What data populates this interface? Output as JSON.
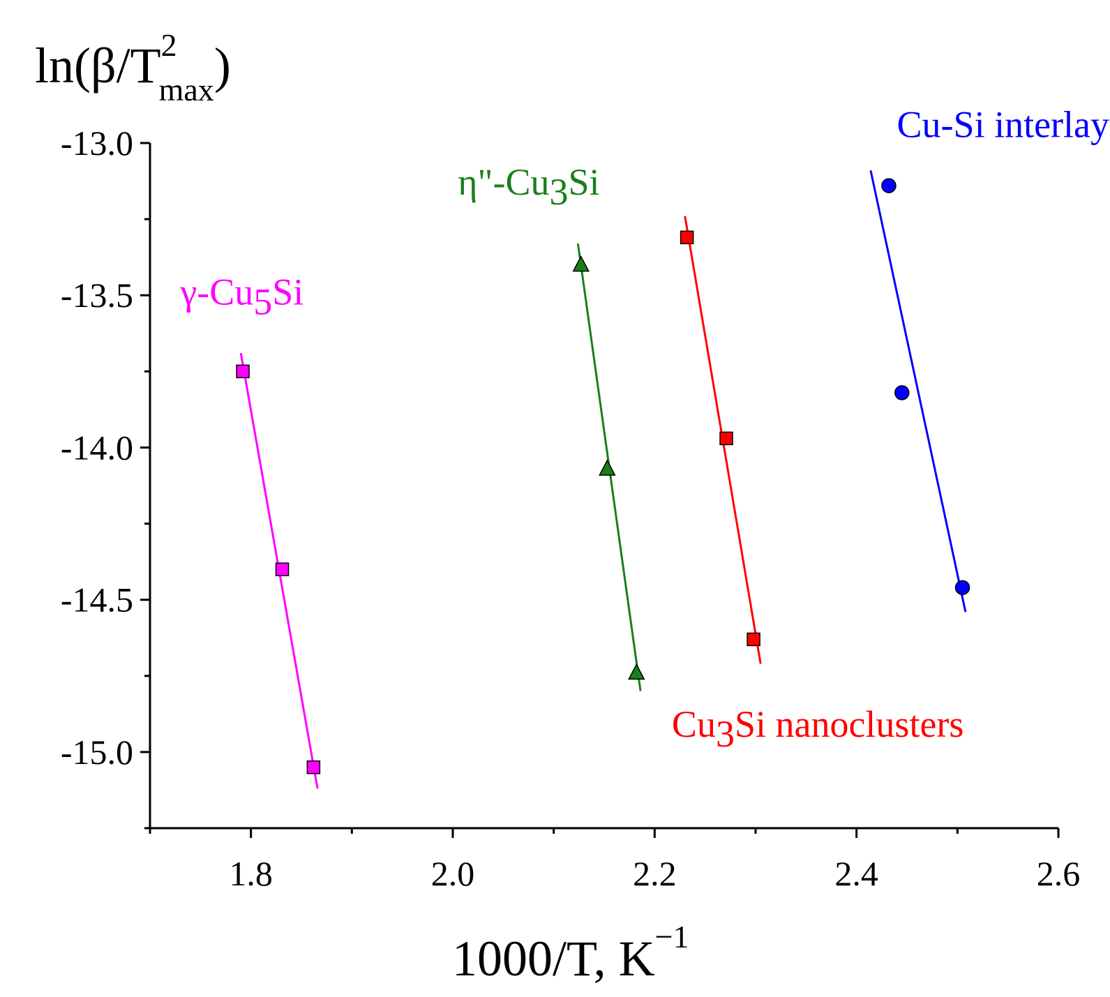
{
  "chart_data": {
    "type": "scatter",
    "title": "",
    "xlabel": {
      "main": "1000/T, K",
      "sup": "−1"
    },
    "ylabel": {
      "prefix": "ln(β/T",
      "sup": "2",
      "sub": "max",
      "suffix": ")"
    },
    "xlim": [
      1.7,
      2.6
    ],
    "ylim": [
      -15.25,
      -13.0
    ],
    "xticks": [
      1.8,
      2.0,
      2.2,
      2.4,
      2.6
    ],
    "xtick_labels": [
      "1.8",
      "2.0",
      "2.2",
      "2.4",
      "2.6"
    ],
    "yticks": [
      -13.0,
      -13.5,
      -14.0,
      -14.5,
      -15.0
    ],
    "ytick_labels": [
      "-13.0",
      "-13.5",
      "-14.0",
      "-14.5",
      "-15.0"
    ],
    "x_minor_step": 0.1,
    "y_minor_step": 0.25,
    "grid": false,
    "series": [
      {
        "key": "gamma",
        "label": {
          "a": "γ-Cu",
          "sub": "5",
          "b": "Si"
        },
        "color": "#ff00ff",
        "marker": "square",
        "x": [
          1.792,
          1.831,
          1.862
        ],
        "y": [
          -13.75,
          -14.4,
          -15.05
        ],
        "fit": {
          "x": [
            1.79,
            1.866
          ],
          "y": [
            -13.69,
            -15.12
          ]
        },
        "label_anchor": {
          "x": 1.73,
          "y": -13.53
        }
      },
      {
        "key": "eta",
        "label": {
          "a": "η\"-Cu",
          "sub": "3",
          "b": "Si"
        },
        "color": "#1a7f1a",
        "marker": "triangle",
        "x": [
          2.127,
          2.153,
          2.182
        ],
        "y": [
          -13.4,
          -14.07,
          -14.74
        ],
        "fit": {
          "x": [
            2.124,
            2.186
          ],
          "y": [
            -13.33,
            -14.8
          ]
        },
        "label_anchor": {
          "x": 2.005,
          "y": -13.17
        }
      },
      {
        "key": "cu3si",
        "label": {
          "a": "Cu",
          "sub": "3",
          "b": "Si nanoclusters"
        },
        "color": "#ff0000",
        "marker": "square",
        "x": [
          2.232,
          2.271,
          2.298
        ],
        "y": [
          -13.31,
          -13.97,
          -14.63
        ],
        "fit": {
          "x": [
            2.23,
            2.305
          ],
          "y": [
            -13.24,
            -14.71
          ]
        },
        "label_anchor": {
          "x": 2.217,
          "y": -14.95
        }
      },
      {
        "key": "interlayer",
        "label": {
          "a": "Cu-Si interlayer",
          "sub": "",
          "b": ""
        },
        "color": "#0000ff",
        "marker": "circle",
        "x": [
          2.432,
          2.445,
          2.505
        ],
        "y": [
          -13.14,
          -13.82,
          -14.46
        ],
        "fit": {
          "x": [
            2.414,
            2.508
          ],
          "y": [
            -13.09,
            -14.54
          ]
        },
        "label_anchor": {
          "x": 2.44,
          "y": -12.98
        }
      }
    ]
  }
}
